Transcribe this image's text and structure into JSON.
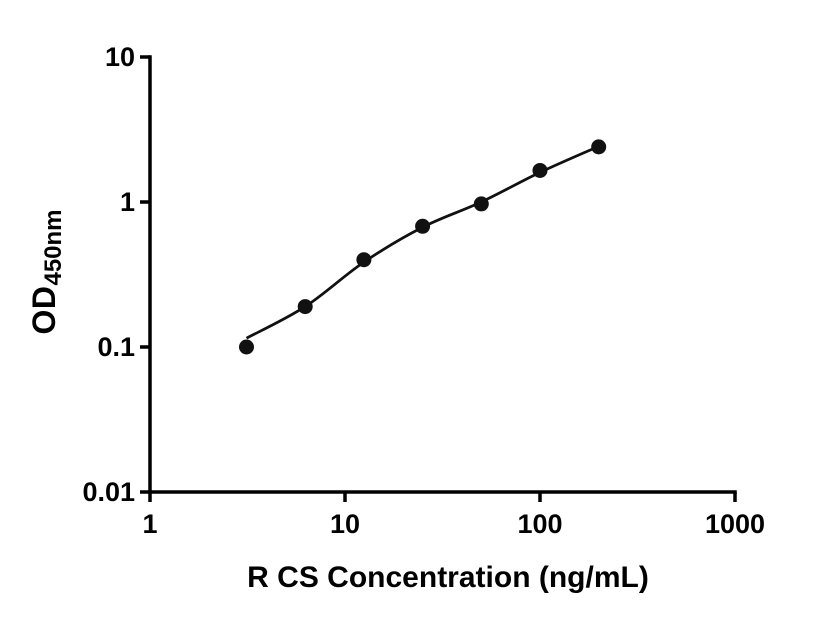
{
  "chart_data": {
    "type": "scatter",
    "title": "",
    "xlabel": "R CS Concentration (ng/mL)",
    "ylabel": "OD",
    "ylabel_sub": "450nm",
    "x_scale": "log",
    "y_scale": "log",
    "xlim": [
      1,
      1000
    ],
    "ylim": [
      0.01,
      10
    ],
    "grid": false,
    "legend": "none",
    "x_ticks": [
      1,
      10,
      100,
      1000
    ],
    "x_tick_labels": [
      "1",
      "10",
      "100",
      "1000"
    ],
    "y_ticks": [
      0.01,
      0.1,
      1,
      10
    ],
    "y_tick_labels": [
      "0.01",
      "0.1",
      "1",
      "10"
    ],
    "points": [
      {
        "x": 3.125,
        "y": 0.1
      },
      {
        "x": 6.25,
        "y": 0.19
      },
      {
        "x": 12.5,
        "y": 0.4
      },
      {
        "x": 25,
        "y": 0.68
      },
      {
        "x": 50,
        "y": 0.97
      },
      {
        "x": 100,
        "y": 1.65
      },
      {
        "x": 200,
        "y": 2.4
      }
    ],
    "fit_curve": [
      {
        "x": 3.125,
        "y": 0.115
      },
      {
        "x": 6.25,
        "y": 0.19
      },
      {
        "x": 12.5,
        "y": 0.385
      },
      {
        "x": 25,
        "y": 0.67
      },
      {
        "x": 50,
        "y": 1.0
      },
      {
        "x": 100,
        "y": 1.6
      },
      {
        "x": 200,
        "y": 2.42
      }
    ],
    "colors": {
      "point": "#111111",
      "line": "#111111",
      "axis": "#000000"
    }
  }
}
